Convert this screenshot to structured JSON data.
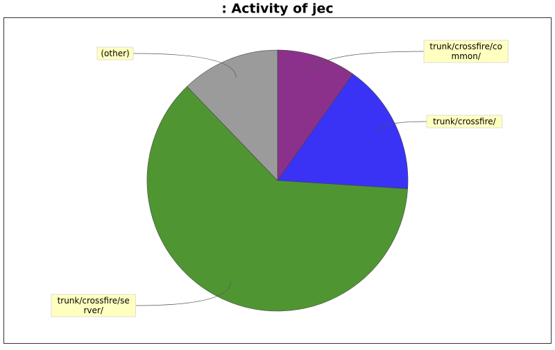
{
  "chart_data": {
    "type": "pie",
    "title": ": Activity of jec",
    "categories": [
      "trunk/crossfire/common/",
      "trunk/crossfire/",
      "trunk/crossfire/server/",
      "(other)"
    ],
    "values": [
      9.8,
      16.2,
      61.8,
      12.2
    ],
    "colors": [
      "#8b318b",
      "#3a33f5",
      "#4f9632",
      "#9b9b9b"
    ]
  }
}
